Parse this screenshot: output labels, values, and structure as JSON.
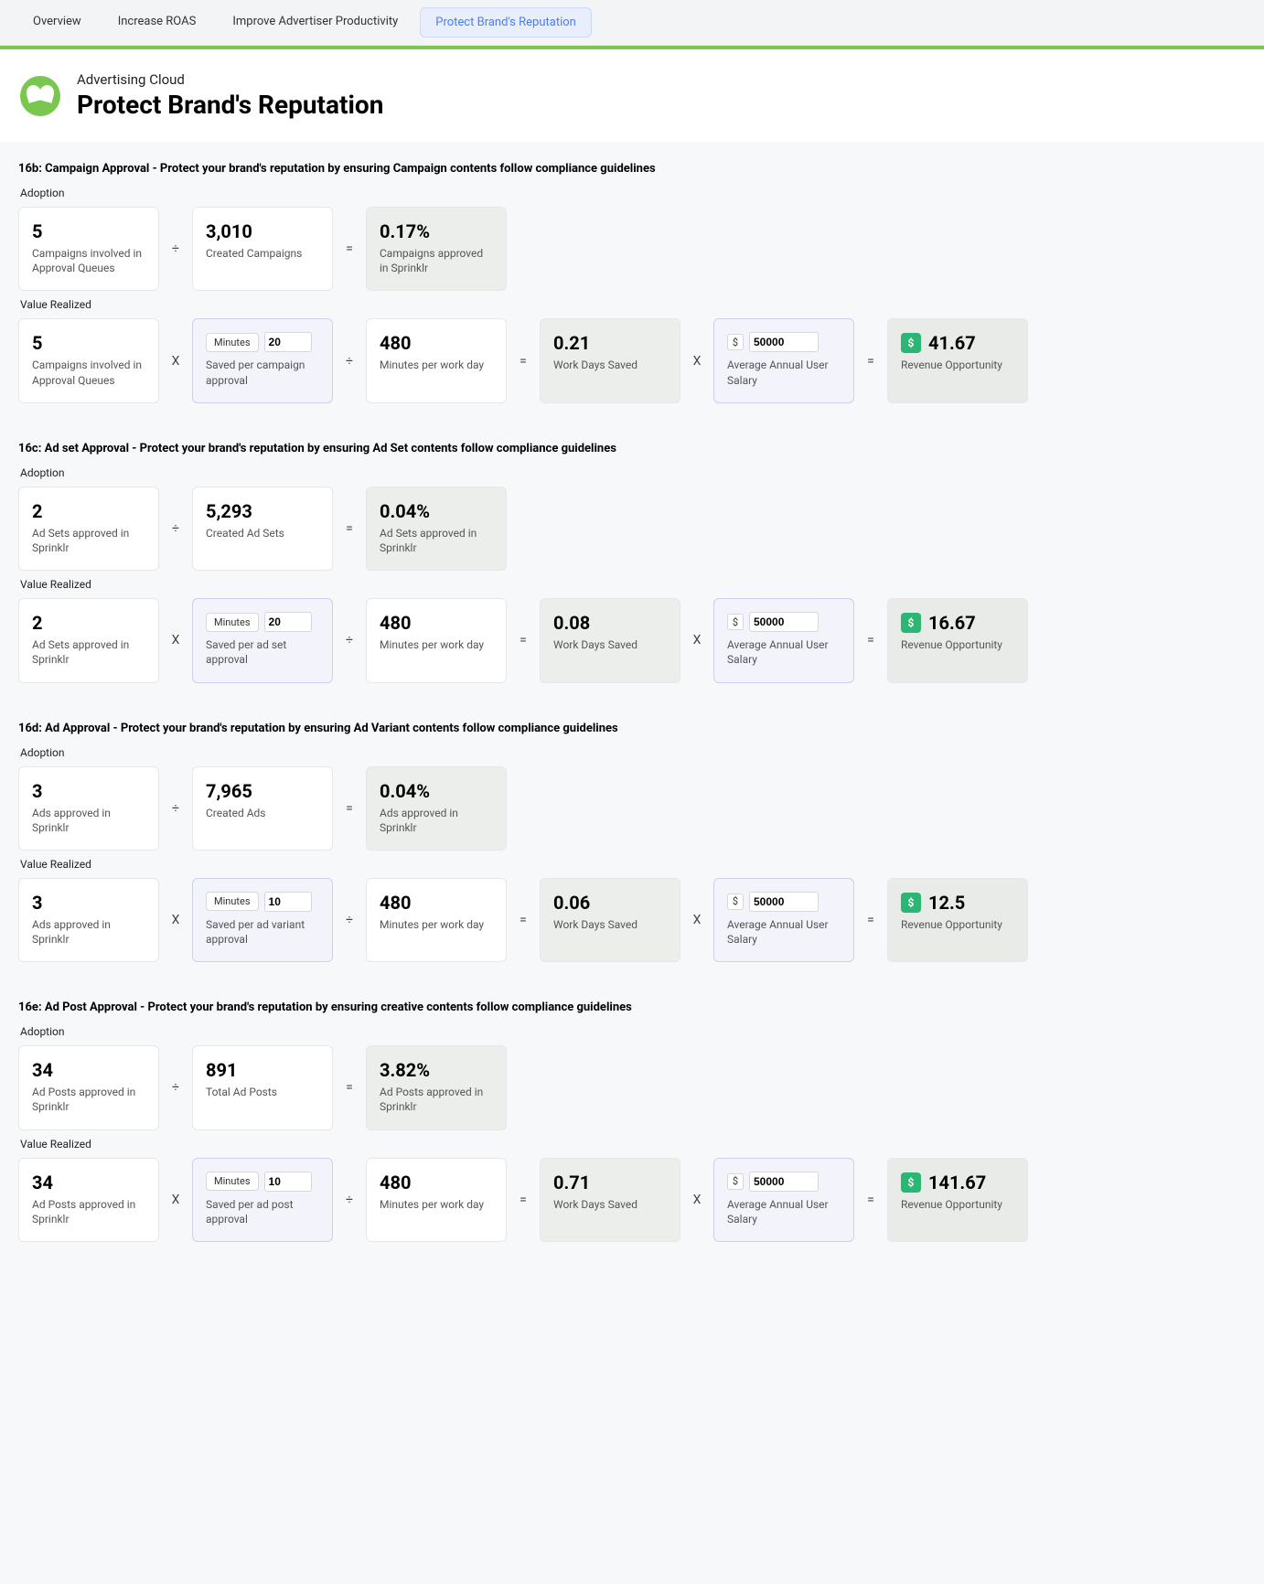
{
  "tabs": {
    "t0": "Overview",
    "t1": "Increase ROAS",
    "t2": "Improve Advertiser Productivity",
    "t3": "Protect Brand's Reputation"
  },
  "header": {
    "subtitle": "Advertising Cloud",
    "title": "Protect Brand's Reputation"
  },
  "labels": {
    "adoption": "Adoption",
    "value_realized": "Value Realized",
    "minutes_btn": "Minutes",
    "currency": "$",
    "minutes_per_day": "Minutes per work day",
    "work_days_saved": "Work Days Saved",
    "avg_salary": "Average Annual User Salary",
    "revenue_opp": "Revenue Opportunity"
  },
  "sections": [
    {
      "title": "16b: Campaign Approval - Protect your brand's reputation by ensuring Campaign contents follow compliance guidelines",
      "adoption": {
        "a_val": "5",
        "a_lbl": "Campaigns involved in Approval Queues",
        "b_val": "3,010",
        "b_lbl": "Created Campaigns",
        "r_val": "0.17%",
        "r_lbl": "Campaigns approved in Sprinklr"
      },
      "value": {
        "a_val": "5",
        "a_lbl": "Campaigns involved in Approval Queues",
        "mins": "20",
        "mins_lbl": "Saved per campaign approval",
        "perday": "480",
        "days": "0.21",
        "salary": "50000",
        "rev": "41.67"
      }
    },
    {
      "title": "16c: Ad set Approval - Protect your brand's reputation by ensuring Ad Set contents follow compliance guidelines",
      "adoption": {
        "a_val": "2",
        "a_lbl": "Ad Sets approved in Sprinklr",
        "b_val": "5,293",
        "b_lbl": "Created Ad Sets",
        "r_val": "0.04%",
        "r_lbl": "Ad Sets approved in Sprinklr"
      },
      "value": {
        "a_val": "2",
        "a_lbl": "Ad Sets approved in Sprinklr",
        "mins": "20",
        "mins_lbl": "Saved per ad set approval",
        "perday": "480",
        "days": "0.08",
        "salary": "50000",
        "rev": "16.67"
      }
    },
    {
      "title": "16d: Ad Approval - Protect your brand's reputation by ensuring Ad Variant contents follow compliance guidelines",
      "adoption": {
        "a_val": "3",
        "a_lbl": "Ads approved in Sprinklr",
        "b_val": "7,965",
        "b_lbl": "Created Ads",
        "r_val": "0.04%",
        "r_lbl": "Ads approved in Sprinklr"
      },
      "value": {
        "a_val": "3",
        "a_lbl": "Ads approved in Sprinklr",
        "mins": "10",
        "mins_lbl": "Saved per ad variant approval",
        "perday": "480",
        "days": "0.06",
        "salary": "50000",
        "rev": "12.5"
      }
    },
    {
      "title": "16e: Ad Post Approval - Protect your brand's reputation by ensuring creative contents follow compliance guidelines",
      "adoption": {
        "a_val": "34",
        "a_lbl": "Ad Posts approved in Sprinklr",
        "b_val": "891",
        "b_lbl": "Total Ad Posts",
        "r_val": "3.82%",
        "r_lbl": "Ad Posts approved in Sprinklr"
      },
      "value": {
        "a_val": "34",
        "a_lbl": "Ad Posts approved in Sprinklr",
        "mins": "10",
        "mins_lbl": "Saved per ad post approval",
        "perday": "480",
        "days": "0.71",
        "salary": "50000",
        "rev": "141.67"
      }
    }
  ]
}
